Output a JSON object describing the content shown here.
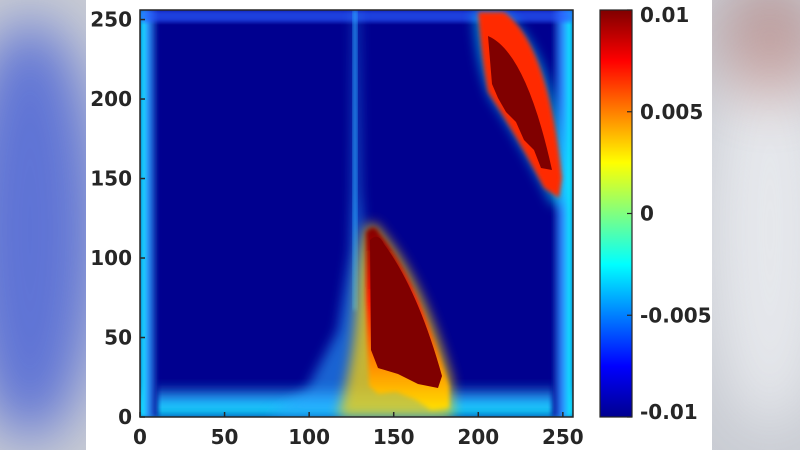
{
  "colors": {
    "low": "#00008f",
    "high": "#800000",
    "background": "#c9ccd3",
    "panel": "#ffffff",
    "text": "#262626"
  },
  "chart_data": {
    "type": "heatmap",
    "title": "",
    "xlabel": "",
    "ylabel": "",
    "colormap": "jet",
    "xlim": [
      0,
      256
    ],
    "ylim": [
      0,
      256
    ],
    "grid": false,
    "x_ticks": [
      0,
      50,
      100,
      150,
      200,
      250
    ],
    "y_ticks": [
      0,
      50,
      100,
      150,
      200,
      250
    ],
    "x_tick_labels": [
      "0",
      "50",
      "100",
      "150",
      "200",
      "250"
    ],
    "y_tick_labels": [
      "0",
      "50",
      "100",
      "150",
      "200",
      "250"
    ],
    "colorbar": {
      "range": [
        -0.01,
        0.01
      ],
      "ticks": [
        -0.01,
        -0.005,
        0,
        0.005,
        0.01
      ],
      "tick_labels": [
        "-0.01",
        "-0.005",
        "0",
        "0.005",
        "0.01"
      ]
    },
    "description_regions": [
      {
        "region": "background",
        "value": -0.01
      },
      {
        "region": "left and bottom border",
        "value": -0.006
      },
      {
        "region": "lower lobe",
        "x": [
          128,
          188
        ],
        "y": [
          0,
          120
        ],
        "value": 0.01
      },
      {
        "region": "upper lobe",
        "x": [
          198,
          258
        ],
        "y": [
          136,
          256
        ],
        "value": 0.01
      }
    ]
  }
}
